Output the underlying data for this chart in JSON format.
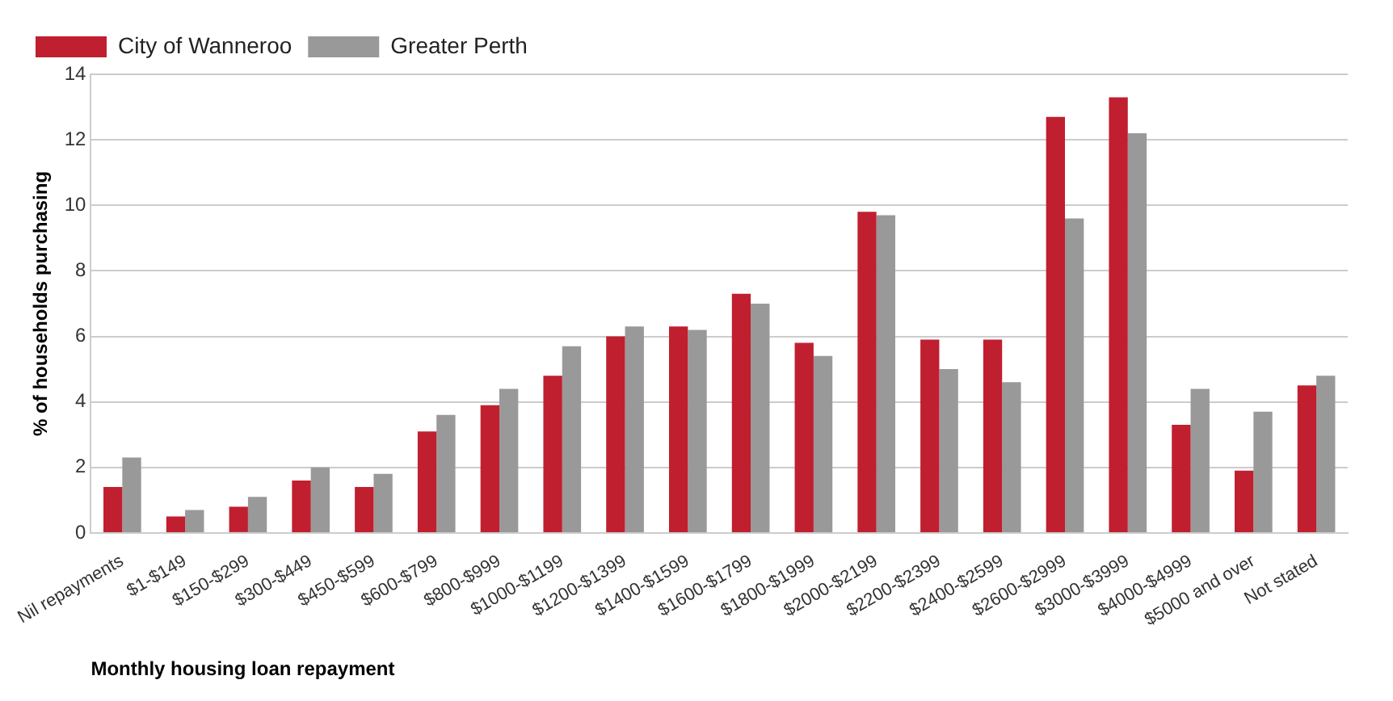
{
  "chart_data": {
    "type": "bar",
    "xlabel": "Monthly housing loan repayment",
    "ylabel": "% of households purchasing",
    "categories": [
      "Nil repayments",
      "$1-$149",
      "$150-$299",
      "$300-$449",
      "$450-$599",
      "$600-$799",
      "$800-$999",
      "$1000-$1199",
      "$1200-$1399",
      "$1400-$1599",
      "$1600-$1799",
      "$1800-$1999",
      "$2000-$2199",
      "$2200-$2399",
      "$2400-$2599",
      "$2600-$2999",
      "$3000-$3999",
      "$4000-$4999",
      "$5000 and over",
      "Not stated"
    ],
    "series": [
      {
        "name": "City of Wanneroo",
        "color": "#c01f2f",
        "values": [
          1.4,
          0.5,
          0.8,
          1.6,
          1.4,
          3.1,
          3.9,
          4.8,
          6.0,
          6.3,
          7.3,
          5.8,
          9.8,
          5.9,
          5.9,
          12.7,
          13.3,
          3.3,
          1.9,
          4.5
        ]
      },
      {
        "name": "Greater Perth",
        "color": "#999999",
        "values": [
          2.3,
          0.7,
          1.1,
          2.0,
          1.8,
          3.6,
          4.4,
          5.7,
          6.3,
          6.2,
          7.0,
          5.4,
          9.7,
          5.0,
          4.6,
          9.6,
          12.2,
          4.4,
          3.7,
          4.8
        ]
      }
    ],
    "ylim": [
      0,
      14
    ],
    "yticks": [
      0,
      2,
      4,
      6,
      8,
      10,
      12,
      14
    ],
    "grid": "y",
    "legend": "top left"
  }
}
